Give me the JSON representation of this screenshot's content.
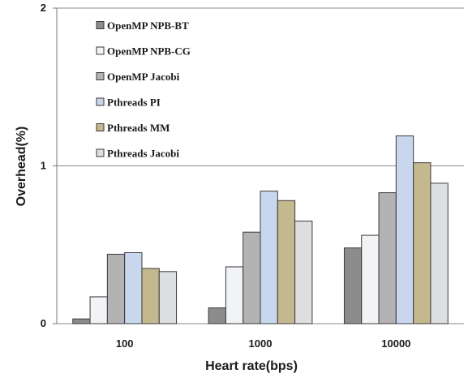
{
  "chart_data": {
    "type": "bar",
    "title": "",
    "xlabel": "Heart rate(bps)",
    "ylabel": "Overhead(%)",
    "categories": [
      "100",
      "1000",
      "10000"
    ],
    "ylim": [
      0,
      2
    ],
    "yticks": [
      "0",
      "1",
      "2"
    ],
    "grid": "horizontal",
    "legend_position": "top-left",
    "series": [
      {
        "name": "OpenMP NPB-BT",
        "values": [
          0.03,
          0.1,
          0.48
        ],
        "color": "#8c8c8c"
      },
      {
        "name": "OpenMP NPB-CG",
        "values": [
          0.17,
          0.36,
          0.56
        ],
        "color": "#f2f3f6"
      },
      {
        "name": "OpenMP Jacobi",
        "values": [
          0.44,
          0.58,
          0.83
        ],
        "color": "#b3b3b3"
      },
      {
        "name": "Pthreads PI",
        "values": [
          0.45,
          0.84,
          1.19
        ],
        "color": "#c9d7ee"
      },
      {
        "name": "Pthreads MM",
        "values": [
          0.35,
          0.78,
          1.02
        ],
        "color": "#c4b88e"
      },
      {
        "name": "Pthreads Jacobi",
        "values": [
          0.33,
          0.65,
          0.89
        ],
        "color": "#dedfe0"
      }
    ]
  }
}
